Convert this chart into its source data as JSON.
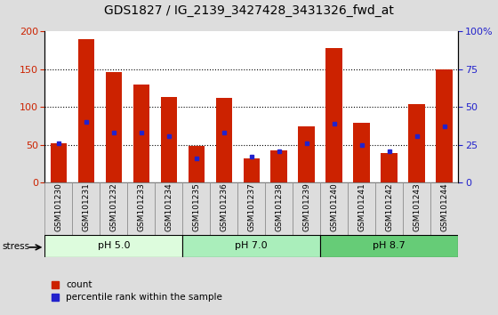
{
  "title": "GDS1827 / IG_2139_3427428_3431326_fwd_at",
  "samples": [
    "GSM101230",
    "GSM101231",
    "GSM101232",
    "GSM101233",
    "GSM101234",
    "GSM101235",
    "GSM101236",
    "GSM101237",
    "GSM101238",
    "GSM101239",
    "GSM101240",
    "GSM101241",
    "GSM101242",
    "GSM101243",
    "GSM101244"
  ],
  "counts": [
    52,
    190,
    146,
    130,
    113,
    49,
    112,
    32,
    43,
    75,
    178,
    79,
    39,
    104,
    150
  ],
  "percentile_ranks": [
    26,
    40,
    33,
    33,
    31,
    16,
    33,
    17,
    21,
    26,
    39,
    25,
    21,
    31,
    37
  ],
  "groups": [
    {
      "label": "pH 5.0",
      "start": 0,
      "end": 4,
      "color": "#ddfcdd"
    },
    {
      "label": "pH 7.0",
      "start": 5,
      "end": 9,
      "color": "#aaeebb"
    },
    {
      "label": "pH 8.7",
      "start": 10,
      "end": 14,
      "color": "#66cc77"
    }
  ],
  "bar_color": "#cc2200",
  "marker_color": "#2222cc",
  "ylim_left": [
    0,
    200
  ],
  "ylim_right": [
    0,
    100
  ],
  "yticks_left": [
    0,
    50,
    100,
    150,
    200
  ],
  "yticks_right": [
    0,
    25,
    50,
    75,
    100
  ],
  "ytick_labels_right": [
    "0",
    "25",
    "50",
    "75",
    "100%"
  ],
  "bg_color": "#dddddd",
  "plot_bg": "#ffffff",
  "stress_label": "stress",
  "legend_count": "count",
  "legend_pct": "percentile rank within the sample",
  "title_fontsize": 10,
  "axis_label_color_left": "#cc2200",
  "axis_label_color_right": "#2222cc"
}
